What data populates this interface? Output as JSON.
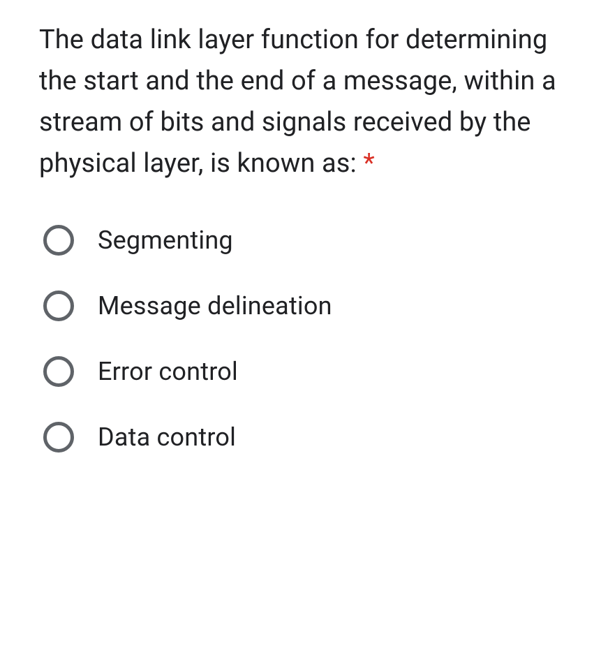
{
  "question": {
    "text": "The data link layer function for determining the start and the end of a message, within a stream of bits and signals received by the physical layer, is known as:",
    "required_marker": "*",
    "required_color": "#d93025",
    "text_color": "#202124",
    "fontsize": 38
  },
  "radio": {
    "border_color": "#5f6368",
    "border_width": 5,
    "size": 44
  },
  "options": [
    {
      "label": "Segmenting",
      "selected": false
    },
    {
      "label": "Message delineation",
      "selected": false
    },
    {
      "label": "Error control",
      "selected": false
    },
    {
      "label": "Data control",
      "selected": false
    }
  ],
  "background_color": "#ffffff"
}
